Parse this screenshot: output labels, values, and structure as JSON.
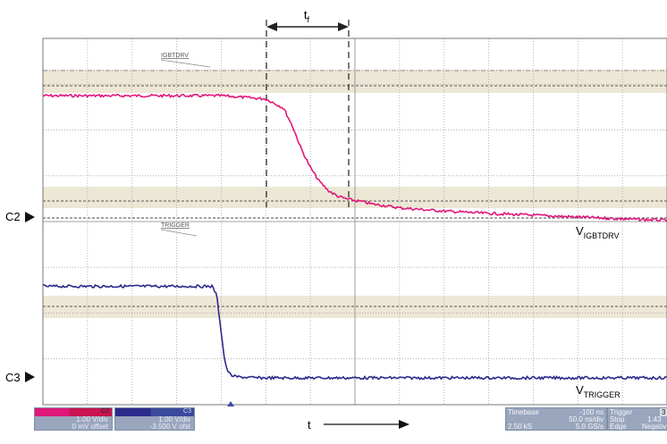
{
  "chart_data": {
    "type": "line",
    "title": "",
    "xlabel": "t",
    "ylabel": "",
    "grid": true,
    "divisions": {
      "x": 14,
      "y": 8
    },
    "xlim": [
      -300,
      400
    ],
    "x_unit": "ns",
    "series": [
      {
        "name": "IGBTDRV",
        "trace_label": "VIGBTDRV",
        "ref_marker": "C2",
        "color": "#e0187a",
        "x": [
          -300,
          -100,
          -50,
          -30,
          -20,
          -10,
          0,
          10,
          20,
          30,
          40,
          50,
          60,
          70,
          80,
          100,
          150,
          200,
          250,
          300,
          350,
          400
        ],
        "y": [
          2.67,
          2.67,
          2.6,
          2.4,
          2.0,
          1.5,
          1.1,
          0.8,
          0.6,
          0.48,
          0.42,
          0.38,
          0.35,
          0.3,
          0.28,
          0.22,
          0.15,
          0.1,
          0.06,
          0.02,
          -0.02,
          -0.05
        ]
      },
      {
        "name": "TRIGGER",
        "trace_label": "VTRIGGER",
        "ref_marker": "C3",
        "color": "#2b2b8c",
        "x": [
          -300,
          -110,
          -105,
          -100,
          -97,
          -94,
          -90,
          -85,
          -80,
          -70,
          -60,
          -50,
          0,
          100,
          200,
          300,
          400
        ],
        "y": [
          2.0,
          2.0,
          1.8,
          1.0,
          0.5,
          0.2,
          0.07,
          0.03,
          0.02,
          0.01,
          0.0,
          0.0,
          0.0,
          0.0,
          0.0,
          0.0,
          0.0
        ]
      }
    ],
    "annotations": [
      {
        "text": "tf",
        "main": "t",
        "sub": "f"
      },
      {
        "text": "VIGBTDRV",
        "main": "V",
        "sub": "IGBTDRV"
      },
      {
        "text": "VTRIGGER",
        "main": "V",
        "sub": "TRIGGER"
      }
    ]
  },
  "footer": {
    "ch2": {
      "name": "C2",
      "vdiv": "1.00 V/div",
      "offset": "0 mV offset"
    },
    "ch3": {
      "name": "C3",
      "vdiv": "1.00 V/div",
      "offset": "-3.500 V ofst"
    },
    "time_label": "t",
    "timebase": {
      "label": "Timebase",
      "pos": "-100 ns",
      "ns_div": "50.0 ns/div",
      "samples": "2.50 kS",
      "rate": "5.0 GS/s"
    },
    "trigger": {
      "label": "Trigger",
      "mode": "Stop",
      "level": "1.43",
      "type": "Edge",
      "slope": "Negativ",
      "ch": "3"
    }
  },
  "colors": {
    "c2": "#e0187a",
    "c3": "#2b2b8c",
    "footer_bg": "#9aa6bd",
    "band": "#ede7d6"
  }
}
